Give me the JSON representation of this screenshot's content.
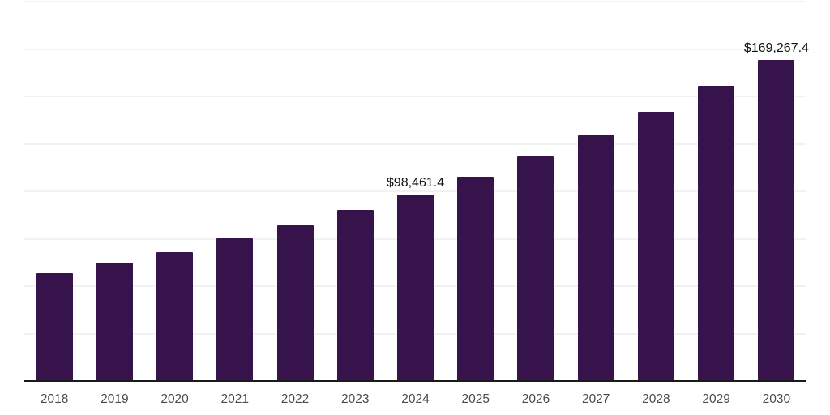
{
  "page": {
    "background": "#ffffff"
  },
  "chart_data": {
    "type": "bar",
    "title": "",
    "xlabel": "",
    "ylabel": "",
    "categories": [
      "2018",
      "2019",
      "2020",
      "2021",
      "2022",
      "2023",
      "2024",
      "2025",
      "2026",
      "2027",
      "2028",
      "2029",
      "2030"
    ],
    "values": [
      56800,
      62400,
      67900,
      75200,
      82000,
      90200,
      98461.4,
      107700,
      118400,
      129500,
      141900,
      155500,
      169267.4
    ],
    "data_labels": [
      "",
      "",
      "",
      "",
      "",
      "",
      "$98,461.4",
      "",
      "",
      "",
      "",
      "",
      "$169,267.4"
    ],
    "ylim": [
      0,
      200000
    ],
    "gridline_step": 25000,
    "grid": true,
    "legend": false,
    "y_tick_labels_visible": false,
    "bar_color": "#36134B",
    "axis_line_color": "#1a1a1a",
    "gridline_color": "#f2f2f2",
    "tick_label_color": "#4a4a4a",
    "data_label_color": "#111111"
  }
}
